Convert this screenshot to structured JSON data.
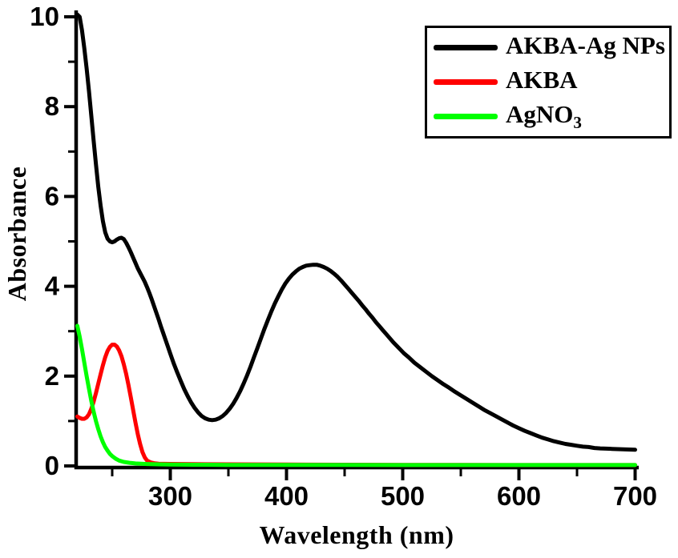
{
  "page": {
    "background": "#ffffff"
  },
  "chart_data": {
    "type": "line",
    "title": "",
    "xlabel": "Wavelength (nm)",
    "ylabel": "Absorbance",
    "xlim": [
      219,
      700
    ],
    "ylim": [
      0,
      10
    ],
    "grid": false,
    "legend_position": "top-right",
    "axes": {
      "x": {
        "label": "Wavelength (nm)",
        "major_ticks": [
          300,
          400,
          500,
          600,
          700
        ],
        "minor_ticks": [
          250,
          350,
          450,
          550,
          650
        ]
      },
      "y": {
        "label": "Absorbance",
        "major_ticks": [
          0,
          2,
          4,
          6,
          8,
          10
        ],
        "minor_ticks": [
          1,
          3,
          5,
          7,
          9
        ]
      }
    },
    "series": [
      {
        "name": "AKBA-Ag NPs",
        "color": "#000000",
        "zorder": 3,
        "points": [
          [
            220,
            10.05
          ],
          [
            222,
            10.0
          ],
          [
            224,
            9.7
          ],
          [
            226,
            9.3
          ],
          [
            228,
            8.85
          ],
          [
            230,
            8.35
          ],
          [
            232,
            7.8
          ],
          [
            234,
            7.25
          ],
          [
            236,
            6.72
          ],
          [
            238,
            6.22
          ],
          [
            240,
            5.8
          ],
          [
            242,
            5.45
          ],
          [
            244,
            5.2
          ],
          [
            246,
            5.06
          ],
          [
            248,
            5.0
          ],
          [
            250,
            4.98
          ],
          [
            252,
            5.0
          ],
          [
            254,
            5.04
          ],
          [
            256,
            5.07
          ],
          [
            258,
            5.08
          ],
          [
            260,
            5.05
          ],
          [
            262,
            4.97
          ],
          [
            264,
            4.87
          ],
          [
            266,
            4.76
          ],
          [
            268,
            4.64
          ],
          [
            270,
            4.52
          ],
          [
            272,
            4.4
          ],
          [
            274,
            4.3
          ],
          [
            276,
            4.2
          ],
          [
            278,
            4.1
          ],
          [
            280,
            3.98
          ],
          [
            282,
            3.85
          ],
          [
            284,
            3.71
          ],
          [
            286,
            3.56
          ],
          [
            288,
            3.41
          ],
          [
            290,
            3.26
          ],
          [
            292,
            3.1
          ],
          [
            294,
            2.95
          ],
          [
            296,
            2.8
          ],
          [
            298,
            2.65
          ],
          [
            300,
            2.5
          ],
          [
            303,
            2.28
          ],
          [
            306,
            2.08
          ],
          [
            309,
            1.89
          ],
          [
            312,
            1.71
          ],
          [
            315,
            1.55
          ],
          [
            318,
            1.41
          ],
          [
            321,
            1.29
          ],
          [
            324,
            1.19
          ],
          [
            327,
            1.11
          ],
          [
            330,
            1.06
          ],
          [
            333,
            1.03
          ],
          [
            336,
            1.02
          ],
          [
            339,
            1.03
          ],
          [
            342,
            1.06
          ],
          [
            345,
            1.11
          ],
          [
            348,
            1.18
          ],
          [
            351,
            1.27
          ],
          [
            354,
            1.38
          ],
          [
            357,
            1.51
          ],
          [
            360,
            1.66
          ],
          [
            363,
            1.83
          ],
          [
            366,
            2.01
          ],
          [
            369,
            2.21
          ],
          [
            372,
            2.42
          ],
          [
            375,
            2.63
          ],
          [
            378,
            2.84
          ],
          [
            381,
            3.05
          ],
          [
            384,
            3.25
          ],
          [
            387,
            3.44
          ],
          [
            390,
            3.62
          ],
          [
            393,
            3.78
          ],
          [
            396,
            3.93
          ],
          [
            399,
            4.06
          ],
          [
            402,
            4.17
          ],
          [
            405,
            4.26
          ],
          [
            408,
            4.33
          ],
          [
            411,
            4.39
          ],
          [
            414,
            4.43
          ],
          [
            417,
            4.46
          ],
          [
            420,
            4.47
          ],
          [
            423,
            4.48
          ],
          [
            426,
            4.48
          ],
          [
            429,
            4.46
          ],
          [
            432,
            4.43
          ],
          [
            435,
            4.39
          ],
          [
            438,
            4.34
          ],
          [
            441,
            4.28
          ],
          [
            444,
            4.21
          ],
          [
            447,
            4.13
          ],
          [
            450,
            4.04
          ],
          [
            453,
            3.95
          ],
          [
            456,
            3.86
          ],
          [
            459,
            3.77
          ],
          [
            462,
            3.68
          ],
          [
            465,
            3.58
          ],
          [
            468,
            3.49
          ],
          [
            471,
            3.39
          ],
          [
            474,
            3.3
          ],
          [
            477,
            3.2
          ],
          [
            480,
            3.11
          ],
          [
            483,
            3.02
          ],
          [
            486,
            2.93
          ],
          [
            489,
            2.84
          ],
          [
            492,
            2.75
          ],
          [
            495,
            2.67
          ],
          [
            498,
            2.59
          ],
          [
            501,
            2.51
          ],
          [
            505,
            2.42
          ],
          [
            510,
            2.3
          ],
          [
            515,
            2.2
          ],
          [
            520,
            2.1
          ],
          [
            525,
            2.0
          ],
          [
            530,
            1.91
          ],
          [
            535,
            1.82
          ],
          [
            540,
            1.74
          ],
          [
            545,
            1.65
          ],
          [
            550,
            1.57
          ],
          [
            555,
            1.49
          ],
          [
            560,
            1.41
          ],
          [
            565,
            1.33
          ],
          [
            570,
            1.25
          ],
          [
            575,
            1.18
          ],
          [
            580,
            1.11
          ],
          [
            585,
            1.04
          ],
          [
            590,
            0.97
          ],
          [
            595,
            0.9
          ],
          [
            600,
            0.84
          ],
          [
            605,
            0.78
          ],
          [
            610,
            0.73
          ],
          [
            615,
            0.68
          ],
          [
            620,
            0.63
          ],
          [
            625,
            0.59
          ],
          [
            630,
            0.55
          ],
          [
            635,
            0.52
          ],
          [
            640,
            0.49
          ],
          [
            645,
            0.47
          ],
          [
            650,
            0.45
          ],
          [
            655,
            0.43
          ],
          [
            660,
            0.42
          ],
          [
            665,
            0.4
          ],
          [
            670,
            0.39
          ],
          [
            675,
            0.385
          ],
          [
            680,
            0.38
          ],
          [
            685,
            0.375
          ],
          [
            690,
            0.37
          ],
          [
            695,
            0.365
          ],
          [
            700,
            0.36
          ]
        ]
      },
      {
        "name": "AKBA",
        "color": "#ff0000",
        "zorder": 1,
        "points": [
          [
            220,
            1.1
          ],
          [
            222,
            1.07
          ],
          [
            224,
            1.05
          ],
          [
            226,
            1.05
          ],
          [
            228,
            1.08
          ],
          [
            230,
            1.15
          ],
          [
            232,
            1.27
          ],
          [
            234,
            1.43
          ],
          [
            236,
            1.62
          ],
          [
            238,
            1.83
          ],
          [
            240,
            2.04
          ],
          [
            242,
            2.24
          ],
          [
            244,
            2.42
          ],
          [
            246,
            2.56
          ],
          [
            248,
            2.65
          ],
          [
            250,
            2.7
          ],
          [
            252,
            2.7
          ],
          [
            254,
            2.66
          ],
          [
            256,
            2.57
          ],
          [
            258,
            2.44
          ],
          [
            260,
            2.26
          ],
          [
            262,
            2.05
          ],
          [
            264,
            1.8
          ],
          [
            266,
            1.53
          ],
          [
            268,
            1.25
          ],
          [
            270,
            0.97
          ],
          [
            272,
            0.71
          ],
          [
            274,
            0.49
          ],
          [
            276,
            0.31
          ],
          [
            278,
            0.19
          ],
          [
            280,
            0.12
          ],
          [
            283,
            0.08
          ],
          [
            286,
            0.06
          ],
          [
            290,
            0.05
          ],
          [
            300,
            0.045
          ],
          [
            320,
            0.04
          ],
          [
            350,
            0.035
          ],
          [
            400,
            0.03
          ],
          [
            450,
            0.026
          ],
          [
            500,
            0.023
          ],
          [
            550,
            0.021
          ],
          [
            600,
            0.02
          ],
          [
            650,
            0.02
          ],
          [
            700,
            0.02
          ]
        ]
      },
      {
        "name": "AgNO3",
        "color": "#00ff00",
        "zorder": 2,
        "points": [
          [
            220,
            3.12
          ],
          [
            222,
            2.88
          ],
          [
            224,
            2.6
          ],
          [
            226,
            2.3
          ],
          [
            228,
            2.0
          ],
          [
            230,
            1.72
          ],
          [
            232,
            1.45
          ],
          [
            234,
            1.21
          ],
          [
            236,
            1.0
          ],
          [
            238,
            0.82
          ],
          [
            240,
            0.66
          ],
          [
            242,
            0.53
          ],
          [
            244,
            0.42
          ],
          [
            246,
            0.34
          ],
          [
            248,
            0.27
          ],
          [
            250,
            0.22
          ],
          [
            253,
            0.16
          ],
          [
            256,
            0.12
          ],
          [
            260,
            0.09
          ],
          [
            265,
            0.07
          ],
          [
            270,
            0.055
          ],
          [
            280,
            0.042
          ],
          [
            290,
            0.035
          ],
          [
            300,
            0.03
          ],
          [
            320,
            0.027
          ],
          [
            350,
            0.024
          ],
          [
            400,
            0.022
          ],
          [
            450,
            0.021
          ],
          [
            500,
            0.02
          ],
          [
            550,
            0.02
          ],
          [
            600,
            0.02
          ],
          [
            650,
            0.02
          ],
          [
            700,
            0.02
          ]
        ]
      }
    ]
  },
  "legend": {
    "items": [
      {
        "label": "AKBA-Ag NPs",
        "sub": "",
        "color": "#000000"
      },
      {
        "label": "AKBA",
        "sub": "",
        "color": "#ff0000"
      },
      {
        "label": "AgNO",
        "sub": "3",
        "color": "#00ff00"
      }
    ]
  }
}
